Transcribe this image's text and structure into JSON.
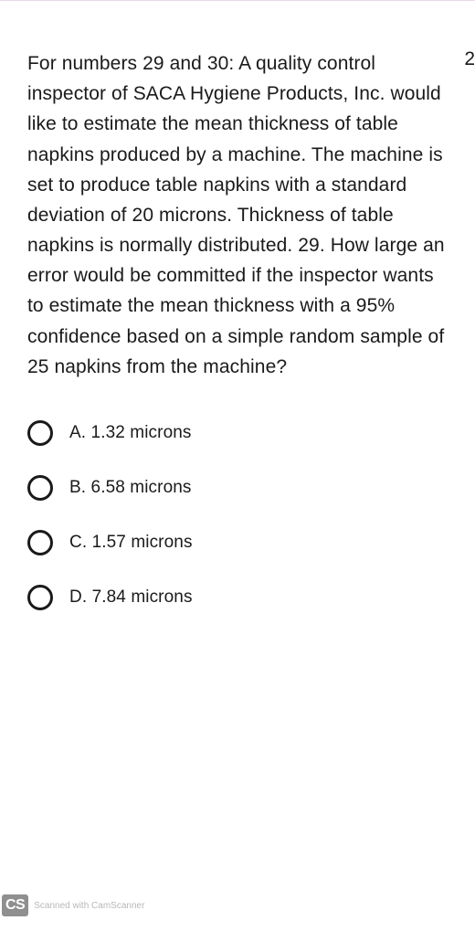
{
  "question": {
    "text": "For numbers 29 and 30: A quality control inspector of SACA Hygiene Products, Inc. would like to estimate the mean thickness of table napkins produced by a machine. The machine is set to produce table napkins with a standard deviation of 20 microns. Thickness of table napkins is normally distributed. 29. How large an error would be committed if the inspector wants to estimate the mean thickness with a 95% confidence based on a simple random sample of 25 napkins from the machine?",
    "points_fragment": "2"
  },
  "options": [
    {
      "label": "A. 1.32 microns"
    },
    {
      "label": "B. 6.58 microns"
    },
    {
      "label": "C. 1.57 microns"
    },
    {
      "label": "D. 7.84 microns"
    }
  ],
  "footer": {
    "badge": "CS",
    "text": "Scanned with CamScanner"
  },
  "colors": {
    "text": "#1a1a1a",
    "radio_border": "#1a1a1a",
    "background": "#ffffff",
    "badge_bg": "#8f8f8f",
    "badge_fg": "#ffffff",
    "footer_text": "#b8b8b8",
    "top_border": "#e8d8e8"
  },
  "typography": {
    "question_fontsize": 21,
    "option_fontsize": 19,
    "line_height": 1.58
  }
}
